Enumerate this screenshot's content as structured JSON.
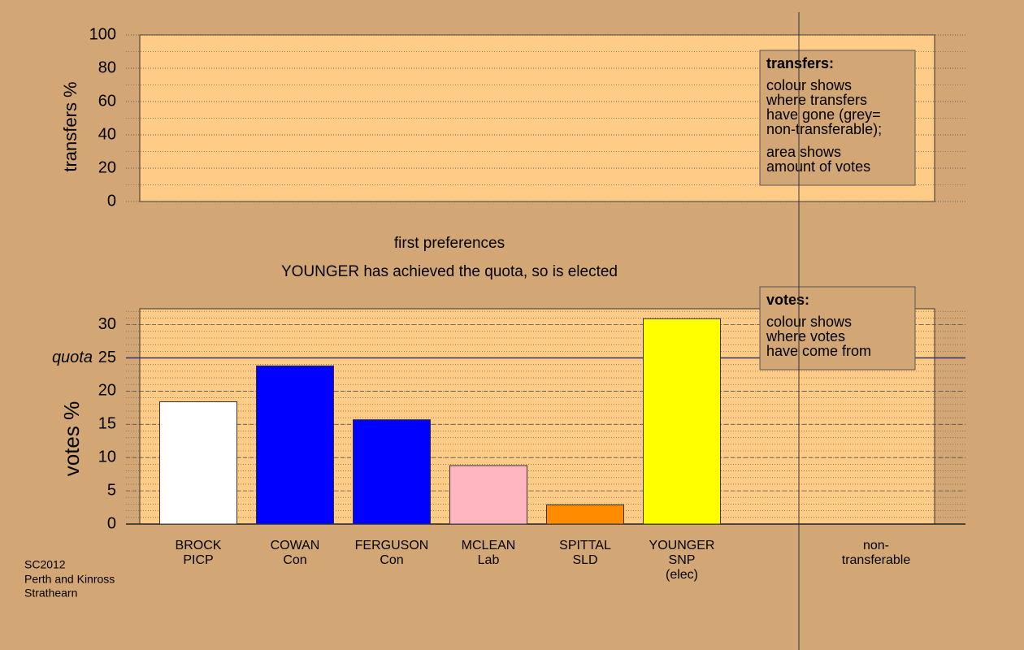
{
  "chart_data": [
    {
      "type": "empty",
      "ylabel": "transfers %",
      "ylim": [
        0,
        100
      ],
      "yticks": [
        0,
        20,
        40,
        60,
        80,
        100
      ],
      "grid": true,
      "note_title": "transfers:",
      "note_paragraphs": [
        [
          "colour shows",
          "where transfers",
          "have gone (grey=",
          "non-transferable);"
        ],
        [
          "area shows",
          "amount of votes"
        ]
      ]
    },
    {
      "type": "bar",
      "title": "first preferences",
      "subtitle": "YOUNGER has achieved the quota, so is elected",
      "ylabel": "votes %",
      "ylim": [
        0,
        32.4
      ],
      "yticks": [
        0,
        5,
        10,
        15,
        20,
        25,
        30
      ],
      "grid": true,
      "quota": {
        "label": "quota",
        "value": 25
      },
      "categories": [
        [
          "BROCK",
          "PICP"
        ],
        [
          "COWAN",
          "Con"
        ],
        [
          "FERGUSON",
          "Con"
        ],
        [
          "MCLEAN",
          "Lab"
        ],
        [
          "SPITTAL",
          "SLD"
        ],
        [
          "YOUNGER",
          "SNP",
          "(elec)"
        ],
        [
          "non-",
          "transferable"
        ]
      ],
      "values": [
        18.4,
        23.8,
        15.7,
        8.8,
        2.9,
        30.9,
        null
      ],
      "colors": [
        "#ffffff",
        "#0000ff",
        "#0000ff",
        "#ffb6c1",
        "#ff8c00",
        "#ffff00",
        null
      ],
      "note_title": "votes:",
      "note_paragraphs": [
        [
          "colour shows",
          "where votes",
          "have come from"
        ]
      ]
    }
  ],
  "footer": [
    "SC2012",
    "Perth and Kinross",
    "Strathearn"
  ]
}
